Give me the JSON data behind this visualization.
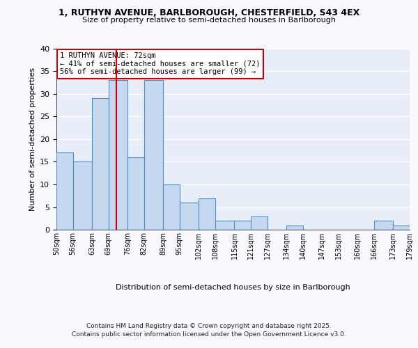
{
  "title1": "1, RUTHYN AVENUE, BARLBOROUGH, CHESTERFIELD, S43 4EX",
  "title2": "Size of property relative to semi-detached houses in Barlborough",
  "xlabel": "Distribution of semi-detached houses by size in Barlborough",
  "ylabel": "Number of semi-detached properties",
  "bins": [
    50,
    56,
    63,
    69,
    76,
    82,
    89,
    95,
    102,
    108,
    115,
    121,
    127,
    134,
    140,
    147,
    153,
    160,
    166,
    173,
    179
  ],
  "counts": [
    17,
    15,
    29,
    33,
    16,
    33,
    10,
    6,
    7,
    2,
    2,
    3,
    0,
    1,
    0,
    0,
    0,
    0,
    2,
    1
  ],
  "tick_labels": [
    "50sqm",
    "56sqm",
    "63sqm",
    "69sqm",
    "76sqm",
    "82sqm",
    "89sqm",
    "95sqm",
    "102sqm",
    "108sqm",
    "115sqm",
    "121sqm",
    "127sqm",
    "134sqm",
    "140sqm",
    "147sqm",
    "153sqm",
    "160sqm",
    "166sqm",
    "173sqm",
    "179sqm"
  ],
  "bar_color": "#c5d8f0",
  "bar_edge_color": "#4a90c4",
  "vline_x": 72,
  "vline_color": "#cc0000",
  "annotation_title": "1 RUTHYN AVENUE: 72sqm",
  "annotation_line1": "← 41% of semi-detached houses are smaller (72)",
  "annotation_line2": "56% of semi-detached houses are larger (99) →",
  "annotation_box_color": "#ffffff",
  "annotation_box_edge": "#cc0000",
  "ylim": [
    0,
    40
  ],
  "yticks": [
    0,
    5,
    10,
    15,
    20,
    25,
    30,
    35,
    40
  ],
  "fig_bg_color": "#f8f9ff",
  "plot_bg_color": "#e8eef8",
  "grid_color": "#ffffff",
  "footer1": "Contains HM Land Registry data © Crown copyright and database right 2025.",
  "footer2": "Contains public sector information licensed under the Open Government Licence v3.0."
}
